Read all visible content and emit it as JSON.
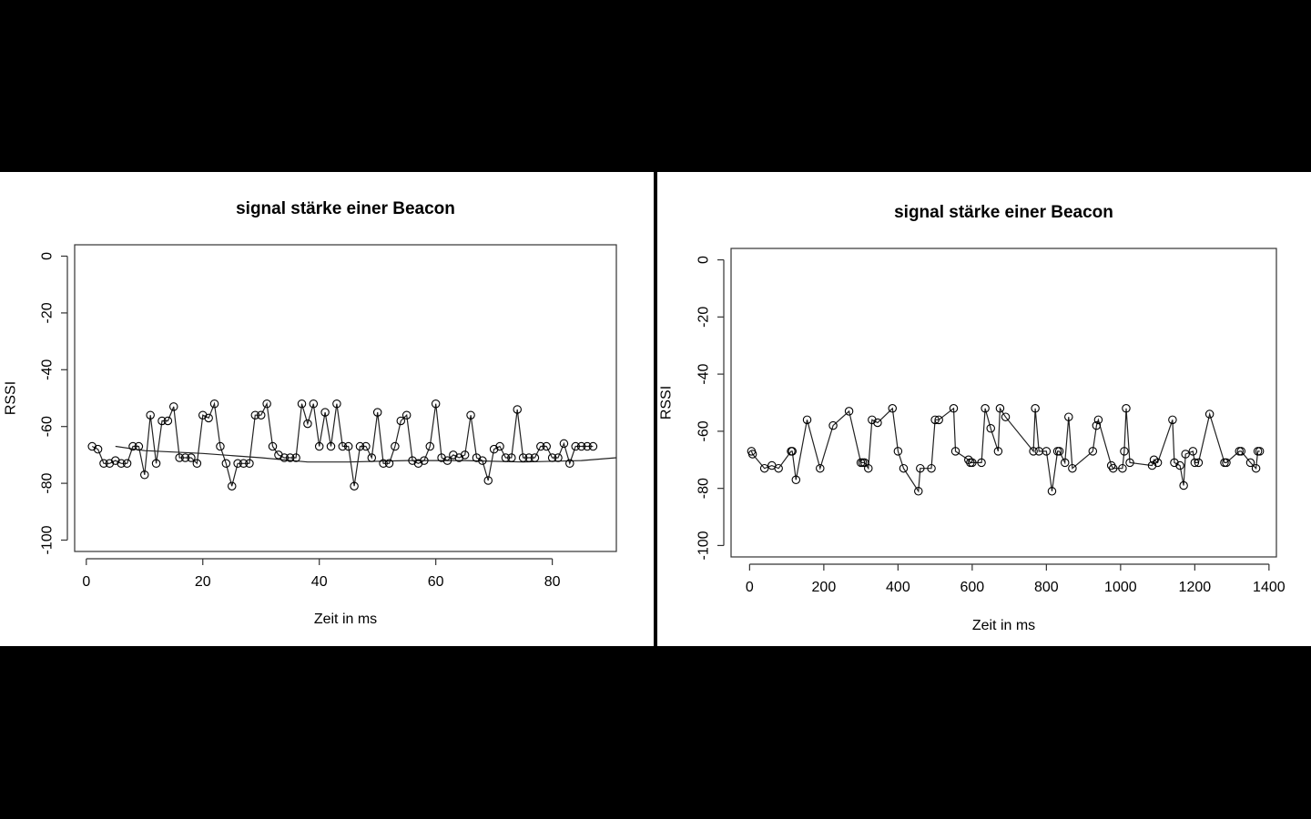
{
  "chart_data": [
    {
      "type": "line",
      "title": "signal stärke einer Beacon",
      "xlabel": "Zeit in ms",
      "ylabel": "RSSI",
      "xlim": [
        -2,
        91
      ],
      "ylim": [
        -104,
        4
      ],
      "xticks": [
        0,
        20,
        40,
        60,
        80
      ],
      "yticks": [
        0,
        -20,
        -40,
        -60,
        -80,
        -100
      ],
      "x": [
        1,
        2,
        3,
        4,
        5,
        6,
        7,
        8,
        9,
        10,
        11,
        12,
        13,
        14,
        15,
        16,
        17,
        18,
        19,
        20,
        21,
        22,
        23,
        24,
        25,
        26,
        27,
        28,
        29,
        30,
        31,
        32,
        33,
        34,
        35,
        36,
        37,
        38,
        39,
        40,
        41,
        42,
        43,
        44,
        45,
        46,
        47,
        48,
        49,
        50,
        51,
        52,
        53,
        54,
        55,
        56,
        57,
        58,
        59,
        60,
        61,
        62,
        63,
        64,
        65,
        66,
        67,
        68,
        69,
        70,
        71,
        72,
        73,
        74,
        75,
        76,
        77,
        78,
        79,
        80,
        81,
        82,
        83,
        84,
        85,
        86,
        87
      ],
      "y": [
        -67,
        -68,
        -73,
        -73,
        -72,
        -73,
        -73,
        -67,
        -67,
        -77,
        -56,
        -73,
        -58,
        -58,
        -53,
        -71,
        -71,
        -71,
        -73,
        -56,
        -57,
        -52,
        -67,
        -73,
        -81,
        -73,
        -73,
        -73,
        -56,
        -56,
        -52,
        -67,
        -70,
        -71,
        -71,
        -71,
        -52,
        -59,
        -52,
        -67,
        -55,
        -67,
        -52,
        -67,
        -67,
        -81,
        -67,
        -67,
        -71,
        -55,
        -73,
        -73,
        -67,
        -58,
        -56,
        -72,
        -73,
        -72,
        -67,
        -52,
        -71,
        -72,
        -70,
        -71,
        -70,
        -56,
        -71,
        -72,
        -79,
        -68,
        -67,
        -71,
        -71,
        -54,
        -71,
        -71,
        -71,
        -67,
        -67,
        -71,
        -71,
        -66,
        -73,
        -67,
        -67,
        -67,
        -67
      ],
      "trend": {
        "x": [
          5,
          10,
          20,
          30,
          38,
          45,
          55,
          65,
          75,
          85,
          91
        ],
        "y": [
          -67,
          -68.5,
          -69.5,
          -71,
          -72.5,
          -72.5,
          -72,
          -72,
          -72.5,
          -72,
          -71
        ]
      }
    },
    {
      "type": "line",
      "title": "signal stärke einer Beacon",
      "xlabel": "Zeit in ms",
      "ylabel": "RSSI",
      "xlim": [
        -50,
        1420
      ],
      "ylim": [
        -104,
        4
      ],
      "xticks": [
        0,
        200,
        400,
        600,
        800,
        1000,
        1200,
        1400
      ],
      "yticks": [
        0,
        -20,
        -40,
        -60,
        -80,
        -100
      ],
      "x": [
        5,
        8,
        40,
        60,
        78,
        112,
        115,
        125,
        155,
        190,
        225,
        268,
        300,
        305,
        310,
        320,
        330,
        345,
        385,
        400,
        415,
        455,
        460,
        490,
        500,
        510,
        550,
        555,
        590,
        595,
        600,
        625,
        635,
        650,
        670,
        675,
        690,
        765,
        770,
        780,
        800,
        815,
        830,
        835,
        850,
        860,
        870,
        925,
        935,
        940,
        975,
        980,
        1005,
        1010,
        1015,
        1025,
        1085,
        1090,
        1100,
        1140,
        1145,
        1160,
        1170,
        1175,
        1195,
        1200,
        1210,
        1240,
        1280,
        1285,
        1320,
        1325,
        1350,
        1365,
        1370,
        1375
      ],
      "y": [
        -67,
        -68,
        -73,
        -72,
        -73,
        -67,
        -67,
        -77,
        -56,
        -73,
        -58,
        -53,
        -71,
        -71,
        -71,
        -73,
        -56,
        -57,
        -52,
        -67,
        -73,
        -81,
        -73,
        -73,
        -56,
        -56,
        -52,
        -67,
        -70,
        -71,
        -71,
        -71,
        -52,
        -59,
        -67,
        -52,
        -55,
        -67,
        -52,
        -67,
        -67,
        -81,
        -67,
        -67,
        -71,
        -55,
        -73,
        -67,
        -58,
        -56,
        -72,
        -73,
        -73,
        -67,
        -52,
        -71,
        -72,
        -70,
        -71,
        -56,
        -71,
        -72,
        -79,
        -68,
        -67,
        -71,
        -71,
        -54,
        -71,
        -71,
        -67,
        -67,
        -71,
        -73,
        -67,
        -67
      ]
    }
  ]
}
